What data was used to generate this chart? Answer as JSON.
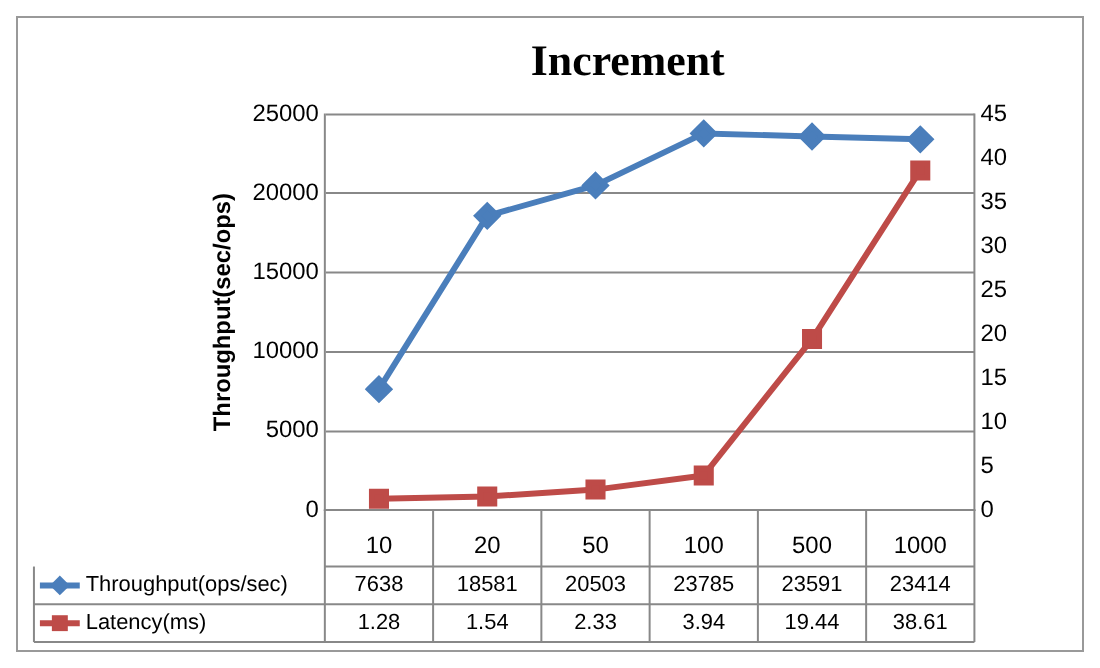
{
  "chart_data": {
    "type": "line",
    "title": "Increment",
    "ylabel": "Throughput(sec/ops)",
    "categories": [
      "10",
      "20",
      "50",
      "100",
      "500",
      "1000"
    ],
    "series": [
      {
        "name": "Throughput(ops/sec)",
        "color": "#4a7ebb",
        "marker": "diamond",
        "values": [
          7638,
          18581,
          20503,
          23785,
          23591,
          23414
        ]
      },
      {
        "name": "Latency(ms)",
        "color": "#be4b48",
        "marker": "square",
        "axis": "y2",
        "values": [
          1.28,
          1.54,
          2.33,
          3.94,
          19.44,
          38.61
        ]
      }
    ],
    "ylim": [
      0,
      25000
    ],
    "yticks": [
      0,
      5000,
      10000,
      15000,
      20000,
      25000
    ],
    "y2lim": [
      0,
      45
    ],
    "y2ticks": [
      0,
      5,
      10,
      15,
      20,
      25,
      30,
      35,
      40,
      45
    ],
    "grid": "y",
    "legend": "bottom",
    "data_labels": true
  }
}
